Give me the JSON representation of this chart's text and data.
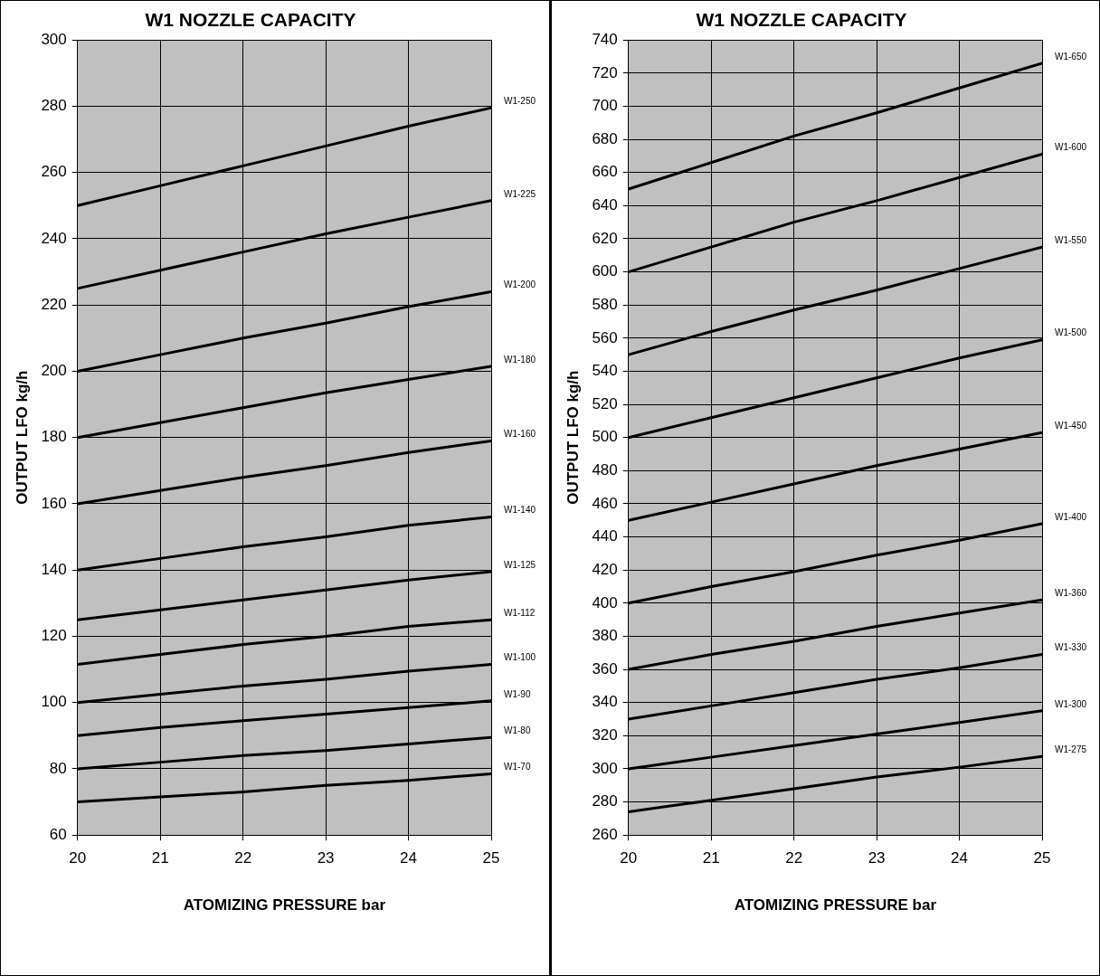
{
  "chart_data": [
    {
      "type": "line",
      "title": "W1 NOZZLE CAPACITY",
      "xlabel": "ATOMIZING PRESSURE bar",
      "ylabel": "OUTPUT LFO kg/h",
      "x": [
        20,
        21,
        22,
        23,
        24,
        25
      ],
      "xlim": [
        20,
        25
      ],
      "xticks": [
        20,
        21,
        22,
        23,
        24,
        25
      ],
      "ylim": [
        60,
        300
      ],
      "yticks": [
        60,
        80,
        100,
        120,
        140,
        160,
        180,
        200,
        220,
        240,
        260,
        280,
        300
      ],
      "grid": true,
      "legend": false,
      "marker": "none",
      "line_style": "solid",
      "series": [
        {
          "name": "W1-250",
          "color": "#000000",
          "values": [
            250,
            256,
            262,
            268,
            274,
            279.5
          ]
        },
        {
          "name": "W1-225",
          "color": "#000000",
          "values": [
            225,
            230.5,
            236,
            241.5,
            246.5,
            251.5
          ]
        },
        {
          "name": "W1-200",
          "color": "#000000",
          "values": [
            200,
            205,
            210,
            214.5,
            219.5,
            224
          ]
        },
        {
          "name": "W1-180",
          "color": "#000000",
          "values": [
            180,
            184.5,
            189,
            193.5,
            197.5,
            201.5
          ]
        },
        {
          "name": "W1-160",
          "color": "#000000",
          "values": [
            160,
            164,
            168,
            171.5,
            175.5,
            179
          ]
        },
        {
          "name": "W1-140",
          "color": "#000000",
          "values": [
            140,
            143.5,
            147,
            150,
            153.5,
            156
          ]
        },
        {
          "name": "W1-125",
          "color": "#000000",
          "values": [
            125,
            128,
            131,
            134,
            137,
            139.5
          ]
        },
        {
          "name": "W1-112",
          "color": "#000000",
          "values": [
            111.5,
            114.5,
            117.5,
            120,
            123,
            125
          ]
        },
        {
          "name": "W1-100",
          "color": "#000000",
          "values": [
            100,
            102.5,
            105,
            107,
            109.5,
            111.5
          ]
        },
        {
          "name": "W1-90",
          "color": "#000000",
          "values": [
            90,
            92.5,
            94.5,
            96.5,
            98.5,
            100.5
          ]
        },
        {
          "name": "W1-80",
          "color": "#000000",
          "values": [
            80,
            82,
            84,
            85.5,
            87.5,
            89.5
          ]
        },
        {
          "name": "W1-70",
          "color": "#000000",
          "values": [
            70,
            71.5,
            73,
            75,
            76.5,
            78.5
          ]
        }
      ]
    },
    {
      "type": "line",
      "title": "W1 NOZZLE CAPACITY",
      "xlabel": "ATOMIZING PRESSURE bar",
      "ylabel": "OUTPUT LFO kg/h",
      "x": [
        20,
        21,
        22,
        23,
        24,
        25
      ],
      "xlim": [
        20,
        25
      ],
      "xticks": [
        20,
        21,
        22,
        23,
        24,
        25
      ],
      "ylim": [
        260,
        740
      ],
      "yticks": [
        260,
        280,
        300,
        320,
        340,
        360,
        380,
        400,
        420,
        440,
        460,
        480,
        500,
        520,
        540,
        560,
        580,
        600,
        620,
        640,
        660,
        680,
        700,
        720,
        740
      ],
      "grid": true,
      "legend": false,
      "marker": "none",
      "line_style": "solid",
      "series": [
        {
          "name": "W1-650",
          "color": "#000000",
          "values": [
            650,
            666,
            682,
            696,
            711,
            726
          ]
        },
        {
          "name": "W1-600",
          "color": "#000000",
          "values": [
            600,
            615,
            630,
            643,
            657,
            671
          ]
        },
        {
          "name": "W1-550",
          "color": "#000000",
          "values": [
            550,
            564,
            577,
            589,
            602,
            615
          ]
        },
        {
          "name": "W1-500",
          "color": "#000000",
          "values": [
            500,
            512,
            524,
            536,
            548,
            559
          ]
        },
        {
          "name": "W1-450",
          "color": "#000000",
          "values": [
            450,
            461,
            472,
            483,
            493,
            503
          ]
        },
        {
          "name": "W1-400",
          "color": "#000000",
          "values": [
            400,
            410,
            419,
            429,
            438,
            448
          ]
        },
        {
          "name": "W1-360",
          "color": "#000000",
          "values": [
            360,
            369,
            377,
            386,
            394,
            402
          ]
        },
        {
          "name": "W1-330",
          "color": "#000000",
          "values": [
            330,
            338,
            346,
            354,
            361,
            369
          ]
        },
        {
          "name": "W1-300",
          "color": "#000000",
          "values": [
            300,
            307,
            314,
            321,
            328,
            335
          ]
        },
        {
          "name": "W1-275",
          "color": "#000000",
          "values": [
            274,
            281,
            288,
            295,
            301,
            307.5
          ]
        }
      ]
    }
  ]
}
